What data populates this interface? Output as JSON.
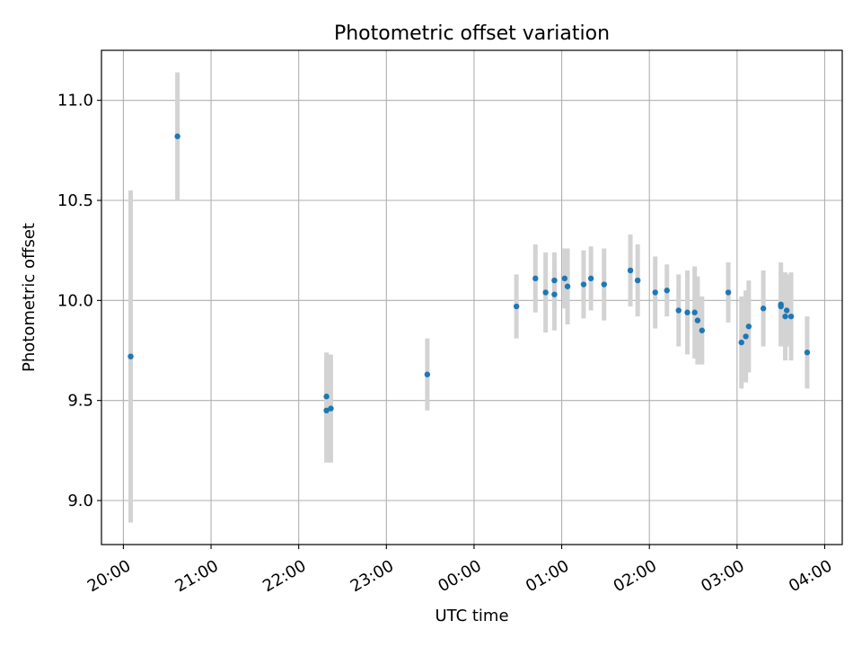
{
  "chart_data": {
    "type": "scatter",
    "title": "Photometric offset variation",
    "xlabel": "UTC time",
    "ylabel": "Photometric offset",
    "x_unit": "UTC time",
    "x_range": [
      "19:45",
      "04:12"
    ],
    "ylim": [
      8.78,
      11.25
    ],
    "grid": true,
    "x_ticks": [
      {
        "label": "20:00",
        "t": "20:00"
      },
      {
        "label": "21:00",
        "t": "21:00"
      },
      {
        "label": "22:00",
        "t": "22:00"
      },
      {
        "label": "23:00",
        "t": "23:00"
      },
      {
        "label": "00:00",
        "t": "00:00"
      },
      {
        "label": "01:00",
        "t": "01:00"
      },
      {
        "label": "02:00",
        "t": "02:00"
      },
      {
        "label": "03:00",
        "t": "03:00"
      },
      {
        "label": "04:00",
        "t": "04:00"
      }
    ],
    "y_ticks": [
      {
        "label": "9.0",
        "v": 9.0
      },
      {
        "label": "9.5",
        "v": 9.5
      },
      {
        "label": "10.0",
        "v": 10.0
      },
      {
        "label": "10.5",
        "v": 10.5
      },
      {
        "label": "11.0",
        "v": 11.0
      }
    ],
    "series": [
      {
        "marker_color": "#1f77b4",
        "errorbar_color": "#d3d3d3",
        "points": [
          {
            "t": "20:05",
            "y": 9.72,
            "err": 0.83
          },
          {
            "t": "20:37",
            "y": 10.82,
            "err": 0.32
          },
          {
            "t": "22:19",
            "y": 9.52,
            "err": 0.22
          },
          {
            "t": "22:19",
            "y": 9.45,
            "err": 0.26
          },
          {
            "t": "22:22",
            "y": 9.46,
            "err": 0.27
          },
          {
            "t": "23:28",
            "y": 9.63,
            "err": 0.18
          },
          {
            "t": "00:29",
            "y": 9.97,
            "err": 0.16
          },
          {
            "t": "00:42",
            "y": 10.11,
            "err": 0.17
          },
          {
            "t": "00:49",
            "y": 10.04,
            "err": 0.2
          },
          {
            "t": "00:55",
            "y": 10.1,
            "err": 0.14
          },
          {
            "t": "00:55",
            "y": 10.03,
            "err": 0.18
          },
          {
            "t": "01:02",
            "y": 10.11,
            "err": 0.15
          },
          {
            "t": "01:04",
            "y": 10.07,
            "err": 0.19
          },
          {
            "t": "01:15",
            "y": 10.08,
            "err": 0.17
          },
          {
            "t": "01:20",
            "y": 10.11,
            "err": 0.16
          },
          {
            "t": "01:29",
            "y": 10.08,
            "err": 0.18
          },
          {
            "t": "01:47",
            "y": 10.15,
            "err": 0.18
          },
          {
            "t": "01:52",
            "y": 10.1,
            "err": 0.18
          },
          {
            "t": "02:04",
            "y": 10.04,
            "err": 0.18
          },
          {
            "t": "02:12",
            "y": 10.05,
            "err": 0.13
          },
          {
            "t": "02:20",
            "y": 9.95,
            "err": 0.18
          },
          {
            "t": "02:26",
            "y": 9.94,
            "err": 0.21
          },
          {
            "t": "02:31",
            "y": 9.94,
            "err": 0.23
          },
          {
            "t": "02:33",
            "y": 9.9,
            "err": 0.22
          },
          {
            "t": "02:36",
            "y": 9.85,
            "err": 0.17
          },
          {
            "t": "02:54",
            "y": 10.04,
            "err": 0.15
          },
          {
            "t": "03:03",
            "y": 9.79,
            "err": 0.23
          },
          {
            "t": "03:06",
            "y": 9.82,
            "err": 0.23
          },
          {
            "t": "03:08",
            "y": 9.87,
            "err": 0.23
          },
          {
            "t": "03:18",
            "y": 9.96,
            "err": 0.19
          },
          {
            "t": "03:30",
            "y": 9.98,
            "err": 0.21
          },
          {
            "t": "03:30",
            "y": 9.97,
            "err": 0.18
          },
          {
            "t": "03:33",
            "y": 9.92,
            "err": 0.22
          },
          {
            "t": "03:34",
            "y": 9.95,
            "err": 0.18
          },
          {
            "t": "03:37",
            "y": 9.92,
            "err": 0.22
          },
          {
            "t": "03:48",
            "y": 9.74,
            "err": 0.18
          }
        ]
      }
    ]
  }
}
